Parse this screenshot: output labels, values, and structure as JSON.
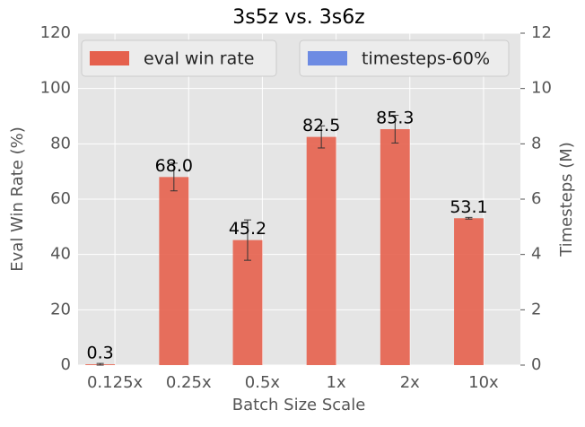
{
  "chart_data": {
    "type": "bar",
    "title": "3s5z vs. 3s6z",
    "xlabel": "Batch Size Scale",
    "ylabel": "Eval Win Rate (%)",
    "y2label": "Timesteps (M)",
    "categories": [
      "0.125x",
      "0.25x",
      "0.5x",
      "1x",
      "2x",
      "10x"
    ],
    "series": [
      {
        "name": "eval win rate",
        "color": "#e5604d",
        "values": [
          0.3,
          68.0,
          45.2,
          82.5,
          85.3,
          53.1
        ],
        "value_labels": [
          "0.3",
          "68.0",
          "45.2",
          "82.5",
          "85.3",
          "53.1"
        ],
        "errors": [
          0.3,
          5,
          7.3,
          4,
          5,
          0.3
        ]
      },
      {
        "name": "timesteps-60%",
        "color": "#6d8be3",
        "axis": "y2",
        "values": [
          null,
          null,
          null,
          null,
          null,
          null
        ]
      }
    ],
    "ylim": [
      0,
      120
    ],
    "yticks": [
      0,
      20,
      40,
      60,
      80,
      100,
      120
    ],
    "y2lim": [
      0,
      12
    ],
    "y2ticks": [
      0,
      2,
      4,
      6,
      8,
      10,
      12
    ],
    "grid": true,
    "legend": "top"
  }
}
